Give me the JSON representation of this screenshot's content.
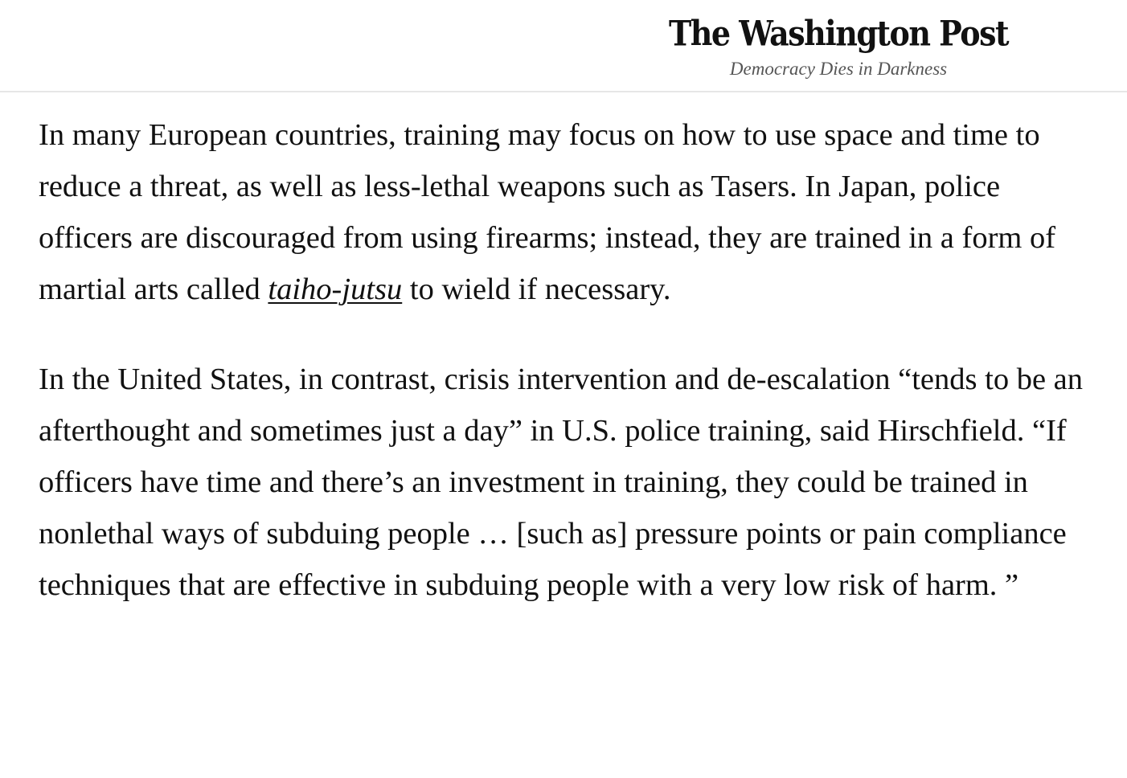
{
  "header": {
    "masthead": "The Washington Post",
    "tagline": "Democracy Dies in Darkness"
  },
  "article": {
    "p1": {
      "before_link": "In many European countries, training may focus on how to use space and time to reduce a threat, as well as less-lethal weapons such as Tasers. In Japan, police officers are discouraged from using firearms; instead, they are trained in a form of martial arts called ",
      "link": "taiho-jutsu",
      "after_link": " to wield if necessary."
    },
    "p2": "In the United States, in contrast, crisis intervention and de-escalation “tends to be an afterthought and sometimes just a day” in U.S. police training, said Hirschfield. “If officers have time and there’s an investment in training, they could be trained in nonlethal ways of subduing people … [such as] pressure points or pain compliance techniques that are effective in subduing people with a very low risk of harm. ”"
  }
}
